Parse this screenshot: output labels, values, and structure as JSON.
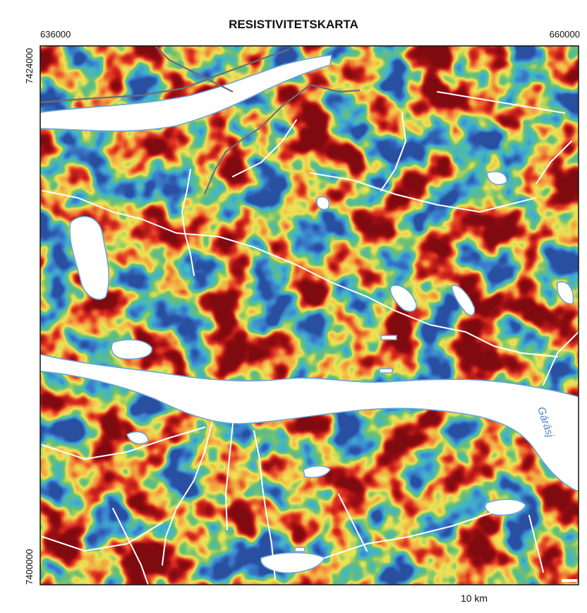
{
  "map": {
    "title": "RESISTIVITETSKARTA",
    "x_labels": [
      "636000",
      "660000"
    ],
    "y_labels": [
      "7424000",
      "7400000"
    ],
    "place_names": [
      "Gárásj"
    ],
    "scale": "10 km"
  }
}
